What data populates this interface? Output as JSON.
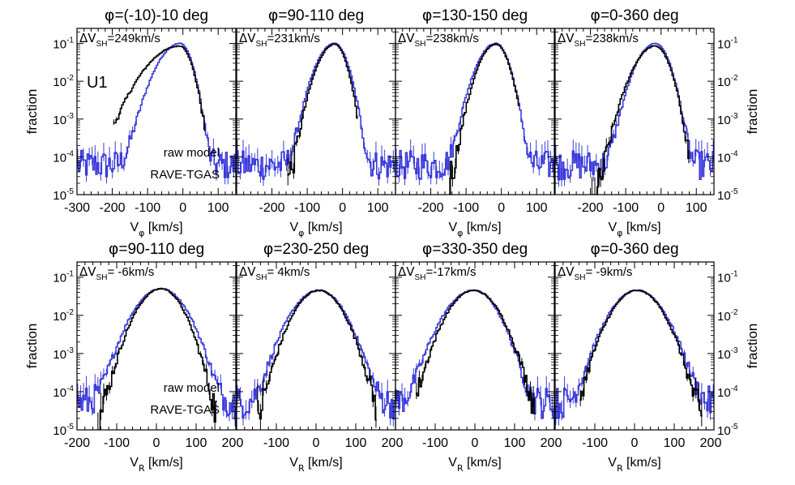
{
  "chart_data": {
    "type": "line",
    "series_colors": {
      "raw model": "#000000",
      "RAVE-TGAS": "#3b3bdc"
    },
    "legend": {
      "entries": [
        "raw model",
        "RAVE-TGAS"
      ],
      "placement": "bottom-left"
    },
    "ylabel": "fraction",
    "y_scale": "log",
    "ylim": [
      1e-05,
      0.25
    ],
    "y_ticks": [
      {
        "base": "10",
        "exp": "-1"
      },
      {
        "base": "10",
        "exp": "-2"
      },
      {
        "base": "10",
        "exp": "-3"
      },
      {
        "base": "10",
        "exp": "-4"
      },
      {
        "base": "10",
        "exp": "-5"
      }
    ],
    "panel_label": "U1",
    "rows": [
      {
        "xlabel_main": "V",
        "xlabel_sub": "φ",
        "xlabel_unit": " [km/s]",
        "panels": [
          {
            "phi_label": "=(-10)-10 deg",
            "dv_value": "=249km/s",
            "xlim": [
              -300,
              150
            ],
            "x_ticks": [
              "-300",
              "-200",
              "-100",
              "0",
              "100"
            ],
            "x_tick_values": [
              -300,
              -200,
              -100,
              0,
              100
            ],
            "model": {
              "center": -10,
              "sigma_left": 60,
              "sigma_right": 22,
              "amp": 0.085,
              "floor": 4e-05,
              "cut_left": -200,
              "cut_right": 60
            },
            "data": {
              "center": -10,
              "sigma_left": 40,
              "sigma_right": 22,
              "amp": 0.1,
              "floor": 6e-05,
              "cut_left": -300,
              "cut_right": 150
            }
          },
          {
            "phi_label": "=90-110 deg",
            "dv_value": "=231km/s",
            "xlim": [
              -300,
              150
            ],
            "x_ticks": [
              "-200",
              "-100",
              "0",
              "100"
            ],
            "x_tick_values": [
              -200,
              -100,
              0,
              100
            ],
            "model": {
              "center": -25,
              "sigma_left": 30,
              "sigma_right": 22,
              "amp": 0.095,
              "floor": 2e-05,
              "cut_left": -160,
              "cut_right": 40
            },
            "data": {
              "center": -25,
              "sigma_left": 32,
              "sigma_right": 24,
              "amp": 0.1,
              "floor": 6e-05,
              "cut_left": -300,
              "cut_right": 150
            }
          },
          {
            "phi_label": "=130-150 deg",
            "dv_value": "=238km/s",
            "xlim": [
              -300,
              150
            ],
            "x_ticks": [
              "-200",
              "-100",
              "0",
              "100"
            ],
            "x_tick_values": [
              -200,
              -100,
              0,
              100
            ],
            "model": {
              "center": -18,
              "sigma_left": 30,
              "sigma_right": 24,
              "amp": 0.095,
              "floor": 2e-05,
              "cut_left": -150,
              "cut_right": 50
            },
            "data": {
              "center": -18,
              "sigma_left": 33,
              "sigma_right": 24,
              "amp": 0.1,
              "floor": 6e-05,
              "cut_left": -300,
              "cut_right": 150
            }
          },
          {
            "phi_label": "=0-360 deg",
            "dv_value": "=238km/s",
            "xlim": [
              -300,
              150
            ],
            "x_ticks": [
              "-200",
              "-100",
              "0",
              "100"
            ],
            "x_tick_values": [
              -200,
              -100,
              0,
              100
            ],
            "model": {
              "center": -18,
              "sigma_left": 38,
              "sigma_right": 26,
              "amp": 0.085,
              "floor": 1e-06,
              "cut_left": -200,
              "cut_right": 80
            },
            "data": {
              "center": -18,
              "sigma_left": 34,
              "sigma_right": 26,
              "amp": 0.1,
              "floor": 6e-05,
              "cut_left": -300,
              "cut_right": 150
            }
          }
        ]
      },
      {
        "xlabel_main": "V",
        "xlabel_sub": "R",
        "xlabel_unit": " [km/s]",
        "panels": [
          {
            "phi_label": "=90-110 deg",
            "dv_value": "= -6km/s",
            "xlim": [
              -200,
              200
            ],
            "x_ticks": [
              "-200",
              "-100",
              "0",
              "100",
              "200"
            ],
            "x_tick_values": [
              -200,
              -100,
              0,
              100,
              200
            ],
            "model": {
              "center": 10,
              "sigma_left": 38,
              "sigma_right": 35,
              "amp": 0.05,
              "floor": 1e-05,
              "cut_left": -150,
              "cut_right": 150
            },
            "data": {
              "center": 10,
              "sigma_left": 42,
              "sigma_right": 40,
              "amp": 0.05,
              "floor": 5e-05,
              "cut_left": -200,
              "cut_right": 200
            }
          },
          {
            "phi_label": "=230-250 deg",
            "dv_value": "=  4km/s",
            "xlim": [
              -200,
              200
            ],
            "x_ticks": [
              "-100",
              "0",
              "100",
              "200"
            ],
            "x_tick_values": [
              -100,
              0,
              100,
              200
            ],
            "model": {
              "center": 5,
              "sigma_left": 38,
              "sigma_right": 38,
              "amp": 0.045,
              "floor": 1e-05,
              "cut_left": -150,
              "cut_right": 150
            },
            "data": {
              "center": 5,
              "sigma_left": 42,
              "sigma_right": 40,
              "amp": 0.045,
              "floor": 5e-05,
              "cut_left": -200,
              "cut_right": 200
            }
          },
          {
            "phi_label": "=330-350 deg",
            "dv_value": "=-17km/s",
            "xlim": [
              -200,
              200
            ],
            "x_ticks": [
              "-100",
              "0",
              "100",
              "200"
            ],
            "x_tick_values": [
              -100,
              0,
              100,
              200
            ],
            "model": {
              "center": -5,
              "sigma_left": 40,
              "sigma_right": 40,
              "amp": 0.045,
              "floor": 1e-05,
              "cut_left": -150,
              "cut_right": 150
            },
            "data": {
              "center": -5,
              "sigma_left": 44,
              "sigma_right": 38,
              "amp": 0.045,
              "floor": 5e-05,
              "cut_left": -200,
              "cut_right": 200
            }
          },
          {
            "phi_label": "=0-360 deg",
            "dv_value": "= -9km/s",
            "xlim": [
              -200,
              200
            ],
            "x_ticks": [
              "-100",
              "0",
              "100",
              "200"
            ],
            "x_tick_values": [
              -100,
              0,
              100,
              200
            ],
            "model": {
              "center": 5,
              "sigma_left": 40,
              "sigma_right": 40,
              "amp": 0.045,
              "floor": 1e-06,
              "cut_left": -140,
              "cut_right": 170
            },
            "data": {
              "center": 5,
              "sigma_left": 42,
              "sigma_right": 42,
              "amp": 0.045,
              "floor": 5e-05,
              "cut_left": -200,
              "cut_right": 200
            }
          }
        ]
      }
    ]
  }
}
